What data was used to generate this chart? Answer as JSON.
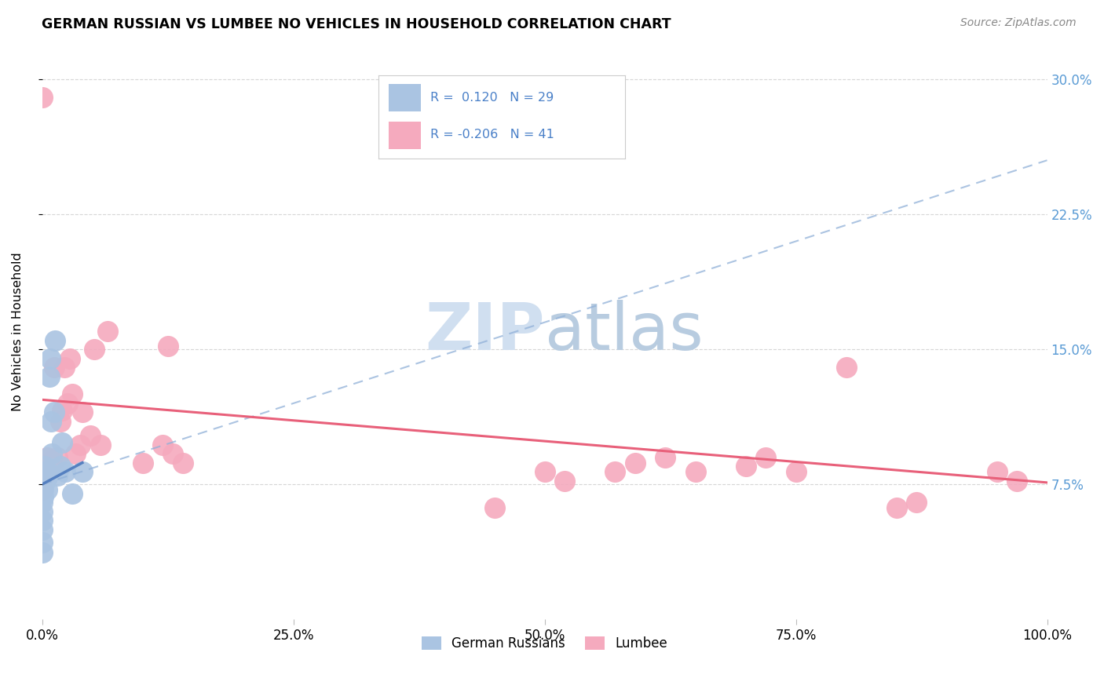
{
  "title": "GERMAN RUSSIAN VS LUMBEE NO VEHICLES IN HOUSEHOLD CORRELATION CHART",
  "source": "Source: ZipAtlas.com",
  "ylabel": "No Vehicles in Household",
  "xlim": [
    0,
    1.0
  ],
  "ylim": [
    0,
    0.32
  ],
  "xticks": [
    0.0,
    0.25,
    0.5,
    0.75,
    1.0
  ],
  "xtick_labels": [
    "0.0%",
    "25.0%",
    "50.0%",
    "75.0%",
    "100.0%"
  ],
  "yticks": [
    0.075,
    0.15,
    0.225,
    0.3
  ],
  "ytick_labels": [
    "7.5%",
    "15.0%",
    "22.5%",
    "30.0%"
  ],
  "legend1_r": " 0.120",
  "legend1_n": "29",
  "legend2_r": "-0.206",
  "legend2_n": "41",
  "blue_scatter_color": "#aac4e2",
  "pink_scatter_color": "#f5aabe",
  "blue_line_color": "#5580c0",
  "blue_dash_color": "#90b0d8",
  "pink_line_color": "#e8607a",
  "watermark_color": "#d0dff0",
  "gr_line_x0": 0.0,
  "gr_line_y0": 0.075,
  "gr_line_x1": 0.04,
  "gr_line_y1": 0.087,
  "dash_line_x0": 0.0,
  "dash_line_y0": 0.075,
  "dash_line_x1": 1.0,
  "dash_line_y1": 0.255,
  "pk_line_x0": 0.0,
  "pk_line_y0": 0.122,
  "pk_line_x1": 1.0,
  "pk_line_y1": 0.076,
  "german_russian_x": [
    0.0,
    0.0,
    0.0,
    0.0,
    0.0,
    0.0,
    0.0,
    0.0,
    0.0,
    0.001,
    0.001,
    0.002,
    0.002,
    0.003,
    0.003,
    0.005,
    0.005,
    0.007,
    0.008,
    0.009,
    0.01,
    0.012,
    0.013,
    0.015,
    0.018,
    0.02,
    0.023,
    0.03,
    0.04
  ],
  "german_russian_y": [
    0.037,
    0.043,
    0.05,
    0.055,
    0.06,
    0.065,
    0.07,
    0.075,
    0.078,
    0.068,
    0.072,
    0.075,
    0.082,
    0.078,
    0.085,
    0.072,
    0.079,
    0.135,
    0.145,
    0.11,
    0.092,
    0.115,
    0.155,
    0.08,
    0.085,
    0.098,
    0.082,
    0.07,
    0.082
  ],
  "lumbee_x": [
    0.0,
    0.0,
    0.003,
    0.005,
    0.008,
    0.01,
    0.012,
    0.015,
    0.018,
    0.02,
    0.022,
    0.025,
    0.028,
    0.03,
    0.033,
    0.038,
    0.04,
    0.048,
    0.052,
    0.058,
    0.065,
    0.1,
    0.12,
    0.125,
    0.13,
    0.14,
    0.45,
    0.5,
    0.52,
    0.57,
    0.59,
    0.62,
    0.65,
    0.7,
    0.72,
    0.75,
    0.8,
    0.85,
    0.87,
    0.95,
    0.97
  ],
  "lumbee_y": [
    0.072,
    0.29,
    0.08,
    0.09,
    0.085,
    0.088,
    0.14,
    0.09,
    0.11,
    0.116,
    0.14,
    0.12,
    0.145,
    0.125,
    0.092,
    0.097,
    0.115,
    0.102,
    0.15,
    0.097,
    0.16,
    0.087,
    0.097,
    0.152,
    0.092,
    0.087,
    0.062,
    0.082,
    0.077,
    0.082,
    0.087,
    0.09,
    0.082,
    0.085,
    0.09,
    0.082,
    0.14,
    0.062,
    0.065,
    0.082,
    0.077
  ]
}
